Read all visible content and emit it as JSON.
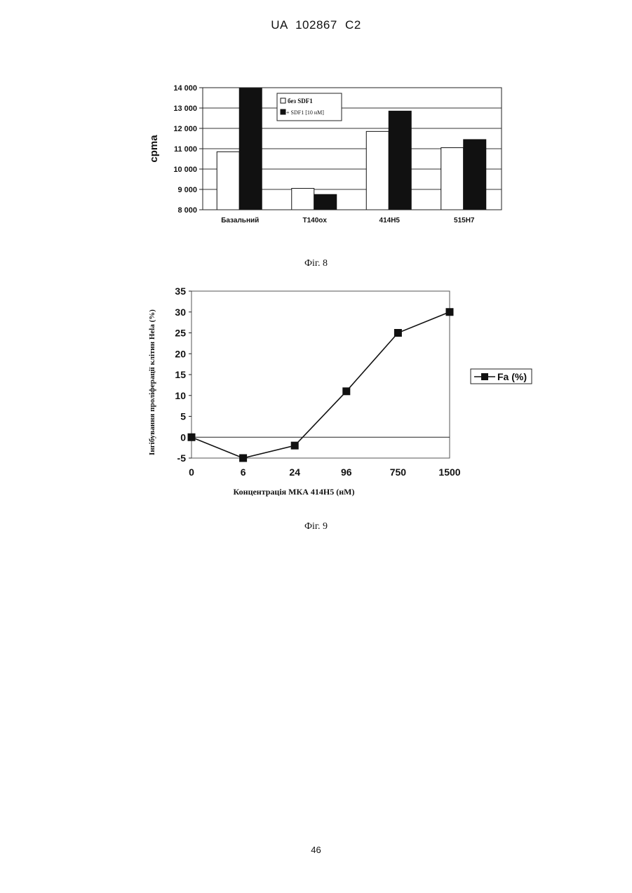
{
  "header": {
    "text": "UA   102867   C2"
  },
  "page_number": "46",
  "chart_data": [
    {
      "type": "bar",
      "title": "",
      "caption": "Фіг. 8",
      "xlabel": "",
      "ylabel": "cpma",
      "categories": [
        "Базальний",
        "T140ox",
        "414H5",
        "515H7"
      ],
      "series": [
        {
          "name": "без SDF1",
          "color": "#ffffff",
          "values": [
            10850,
            9050,
            11850,
            11050
          ]
        },
        {
          "name": "+ SDF1 [10 нМ]",
          "color": "#111111",
          "values": [
            14000,
            8750,
            12850,
            11450
          ]
        }
      ],
      "ylim": [
        8000,
        14000
      ],
      "yticks": [
        8000,
        9000,
        10000,
        11000,
        12000,
        13000,
        14000
      ],
      "ytick_labels": [
        "8 000",
        "9 000",
        "10 000",
        "11 000",
        "12 000",
        "13 000",
        "14 000"
      ],
      "grid": true,
      "legend_position": "top-left-inside"
    },
    {
      "type": "line",
      "title": "",
      "caption": "Фіг. 9",
      "xlabel": "Концентрація МКА 414H5 (нМ)",
      "ylabel": "Інгібування проліферації клітин Hela (%)",
      "categories": [
        "0",
        "6",
        "24",
        "96",
        "750",
        "1500"
      ],
      "series": [
        {
          "name": "Fa (%)",
          "color": "#111111",
          "values": [
            0,
            -5,
            -2,
            11,
            25,
            30
          ]
        }
      ],
      "ylim": [
        -5,
        35
      ],
      "yticks": [
        -5,
        0,
        5,
        10,
        15,
        20,
        25,
        30,
        35
      ],
      "grid": false,
      "legend_position": "right-outside"
    }
  ]
}
